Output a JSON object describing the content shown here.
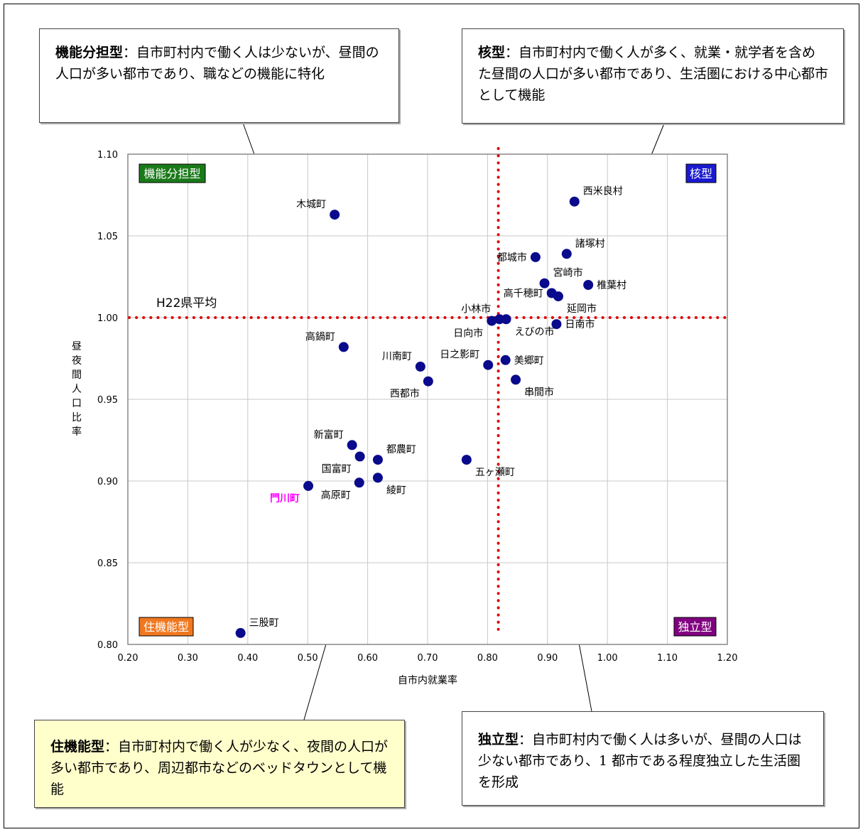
{
  "callouts": {
    "top_left": {
      "title": "機能分担型",
      "body": "：自市町村内で働く人は少ないが、昼間の人口が多い都市であり、職などの機能に特化"
    },
    "top_right": {
      "title": "核型",
      "body": "：自市町村内で働く人が多く、就業・就学者を含めた昼間の人口が多い都市であり、生活圏における中心都市として機能"
    },
    "bottom_left": {
      "title": "住機能型",
      "body": "：自市町村内で働く人が少なく、夜間の人口が多い都市であり、周辺都市などのベッドタウンとして機能"
    },
    "bottom_right": {
      "title": "独立型",
      "body": "：自市町村内で働く人は多いが、昼間の人口は少ない都市であり、1 都市である程度独立した生活圏を形成"
    }
  },
  "chart_data": {
    "type": "scatter",
    "xlabel": "自市内就業率",
    "ylabel": "昼夜間人口比率",
    "xlim": [
      0.2,
      1.2
    ],
    "ylim": [
      0.8,
      1.1
    ],
    "xticks": [
      "0.20",
      "0.30",
      "0.40",
      "0.50",
      "0.60",
      "0.70",
      "0.80",
      "0.90",
      "1.00",
      "1.10",
      "1.20"
    ],
    "yticks": [
      "0.80",
      "0.85",
      "0.90",
      "0.95",
      "1.00",
      "1.05",
      "1.10"
    ],
    "grid": true,
    "reference_lines": {
      "x": 0.818,
      "y": 1.0,
      "color": "#e00000",
      "style": "dotted",
      "label": "H22県平均"
    },
    "quadrant_labels": [
      {
        "text": "機能分担型",
        "position": "top-left",
        "color": "#1a7a1a"
      },
      {
        "text": "核型",
        "position": "top-right",
        "color": "#1a1ad0"
      },
      {
        "text": "住機能型",
        "position": "bottom-left",
        "color": "#f07820"
      },
      {
        "text": "独立型",
        "position": "bottom-right",
        "color": "#800080"
      }
    ],
    "marker_color": "#0a0a8c",
    "highlight_color": "#ff00ff",
    "points": [
      {
        "label": "西米良村",
        "x": 0.945,
        "y": 1.071,
        "label_pos": "upper-right"
      },
      {
        "label": "木城町",
        "x": 0.545,
        "y": 1.063,
        "label_pos": "upper-left"
      },
      {
        "label": "諸塚村",
        "x": 0.932,
        "y": 1.039,
        "label_pos": "upper-right"
      },
      {
        "label": "都城市",
        "x": 0.88,
        "y": 1.037,
        "label_pos": "left"
      },
      {
        "label": "宮崎市",
        "x": 0.895,
        "y": 1.021,
        "label_pos": "upper-right"
      },
      {
        "label": "椎葉村",
        "x": 0.968,
        "y": 1.02,
        "label_pos": "right"
      },
      {
        "label": "高千穂町",
        "x": 0.907,
        "y": 1.015,
        "label_pos": "left"
      },
      {
        "label": "延岡市",
        "x": 0.918,
        "y": 1.013,
        "label_pos": "lower-right"
      },
      {
        "label": "小林市",
        "x": 0.82,
        "y": 0.999,
        "label_pos": "upper-left"
      },
      {
        "label": "日向市",
        "x": 0.807,
        "y": 0.998,
        "label_pos": "lower-left"
      },
      {
        "label": "えびの市",
        "x": 0.831,
        "y": 0.999,
        "label_pos": "lower-right"
      },
      {
        "label": "日南市",
        "x": 0.915,
        "y": 0.996,
        "label_pos": "right"
      },
      {
        "label": "高鍋町",
        "x": 0.56,
        "y": 0.982,
        "label_pos": "upper-left"
      },
      {
        "label": "日之影町",
        "x": 0.801,
        "y": 0.971,
        "label_pos": "upper-left"
      },
      {
        "label": "美郷町",
        "x": 0.83,
        "y": 0.974,
        "label_pos": "right"
      },
      {
        "label": "川南町",
        "x": 0.688,
        "y": 0.97,
        "label_pos": "upper-left"
      },
      {
        "label": "串間市",
        "x": 0.847,
        "y": 0.962,
        "label_pos": "lower-right"
      },
      {
        "label": "西都市",
        "x": 0.701,
        "y": 0.961,
        "label_pos": "lower-left"
      },
      {
        "label": "新富町",
        "x": 0.574,
        "y": 0.922,
        "label_pos": "upper-left"
      },
      {
        "label": "都農町",
        "x": 0.617,
        "y": 0.913,
        "label_pos": "upper-right"
      },
      {
        "label": "国富町",
        "x": 0.587,
        "y": 0.915,
        "label_pos": "lower-left"
      },
      {
        "label": "五ヶ瀬町",
        "x": 0.765,
        "y": 0.913,
        "label_pos": "lower-right"
      },
      {
        "label": "綾町",
        "x": 0.617,
        "y": 0.902,
        "label_pos": "lower-right"
      },
      {
        "label": "高原町",
        "x": 0.586,
        "y": 0.899,
        "label_pos": "lower-left"
      },
      {
        "label": "門川町",
        "x": 0.501,
        "y": 0.897,
        "label_pos": "lower-left",
        "highlight": true
      },
      {
        "label": "三股町",
        "x": 0.388,
        "y": 0.807,
        "label_pos": "upper-right"
      }
    ]
  }
}
